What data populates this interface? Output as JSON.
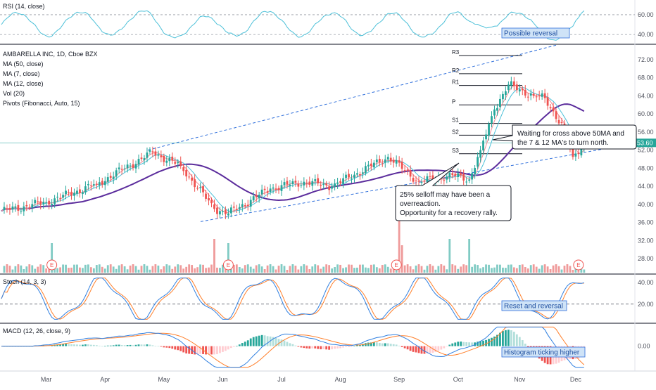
{
  "chart_data": {
    "type": "candlestick",
    "panes": {
      "rsi": {
        "label": "RSI (14, close)",
        "ticks": [
          60.0,
          40.0
        ],
        "ylim": [
          33,
          72
        ]
      },
      "price": {
        "legend": [
          "AMBARELLA INC, 1D, Cboe BZX",
          "MA (50, close)",
          "MA (7, close)",
          "MA (12, close)",
          "Vol (20)",
          "Pivots (Fibonacci, Auto, 15)"
        ],
        "ticks": [
          72.0,
          68.0,
          64.0,
          60.0,
          56.0,
          52.0,
          48.0,
          44.0,
          40.0,
          36.0,
          32.0,
          28.0
        ],
        "ylim": [
          24.6,
          75.4
        ],
        "last_price": "53.60",
        "last_value": 53.6,
        "pivots": [
          {
            "label": "R3",
            "value": 72.9
          },
          {
            "label": "R2",
            "value": 68.9
          },
          {
            "label": "R1",
            "value": 66.3
          },
          {
            "label": "P",
            "value": 62.0
          },
          {
            "label": "S1",
            "value": 57.9
          },
          {
            "label": "S2",
            "value": 55.3
          },
          {
            "label": "S3",
            "value": 51.2
          }
        ]
      },
      "stoch": {
        "label": "Stoch (14, 3, 3)",
        "ticks": [
          40.0,
          20.0
        ],
        "ylim": [
          5,
          45
        ],
        "dashed_level": 20
      },
      "macd": {
        "label": "MACD (12, 26, close, 9)",
        "ticks": [
          "0.00"
        ],
        "ylim": [
          -2.2,
          2.0
        ]
      }
    },
    "x_labels": [
      "Mar",
      "Apr",
      "May",
      "Jun",
      "Jul",
      "Aug",
      "Sep",
      "Oct",
      "Nov",
      "Dec"
    ],
    "closes_start": 38.5,
    "closes_segments": [
      [
        38.5,
        40.5,
        16
      ],
      [
        40.5,
        44.5,
        18
      ],
      [
        44.5,
        51.5,
        20
      ],
      [
        51.5,
        48.5,
        10
      ],
      [
        48.5,
        39.0,
        12
      ],
      [
        39.0,
        38.0,
        5
      ],
      [
        38.0,
        43.5,
        15
      ],
      [
        43.5,
        45.0,
        12
      ],
      [
        45.0,
        44.0,
        10
      ],
      [
        44.0,
        50.5,
        20
      ],
      [
        50.5,
        45.0,
        11
      ],
      [
        45.0,
        46.5,
        12
      ],
      [
        46.5,
        45.5,
        6
      ],
      [
        45.5,
        52.0,
        4
      ],
      [
        52.0,
        61.0,
        5
      ],
      [
        61.0,
        66.5,
        5
      ],
      [
        66.5,
        64.0,
        9
      ],
      [
        64.0,
        63.5,
        4
      ],
      [
        63.5,
        56.5,
        7
      ],
      [
        56.5,
        50.5,
        3
      ],
      [
        50.5,
        53.6,
        4
      ]
    ],
    "colors": {
      "up": "#26a69a",
      "down": "#ef5350",
      "ma50": "#5b2c9c",
      "ma7": "#f28b96",
      "ma12": "#4cc0d8",
      "trend": "#2f6fdb",
      "stoch_k": "#2f7fe0",
      "stoch_d": "#ff7f2a",
      "rsi": "#4cc0d8"
    },
    "annotations": {
      "possible_reversal": "Possible reversal",
      "reset_reversal": "Reset and reversal",
      "histogram_higher": "Histogram ticking higher",
      "callout_cross_line1": "Waiting for cross above 50MA  and",
      "callout_cross_line2": "the 7 & 12 MA's to turn north.",
      "callout_selloff_line1": "25% selloff may have been a",
      "callout_selloff_line2": "overreaction.",
      "callout_selloff_line3": "Opportunity for a recovery rally.",
      "earnings_marker": "E"
    }
  }
}
